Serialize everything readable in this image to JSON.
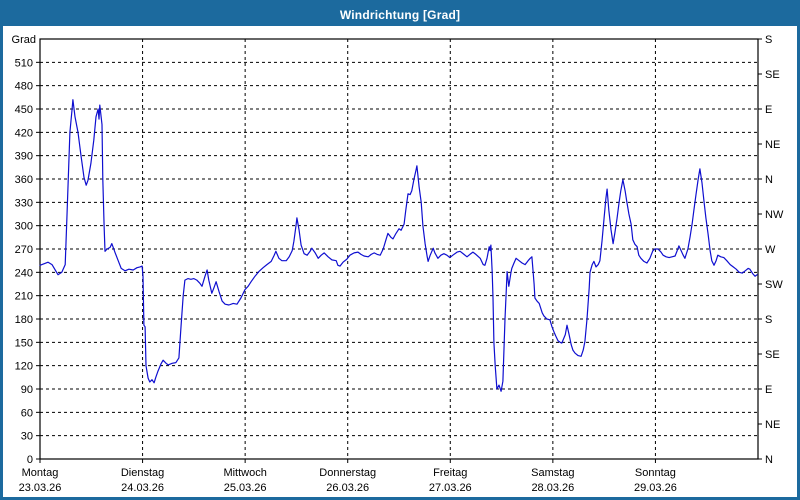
{
  "window": {
    "title": "Windrichtung [Grad]"
  },
  "colors": {
    "titlebar": "#1c6a9e",
    "window_border": "#1c6a9e",
    "series_line": "#0f0fd0",
    "grid": "#000000",
    "background": "#ffffff",
    "title_text": "#ffffff"
  },
  "chart_data": {
    "type": "line",
    "title": "Windrichtung [Grad]",
    "ylabel_left": "Grad",
    "ylim": [
      0,
      540
    ],
    "xlim_hours": [
      0,
      168
    ],
    "grid": "dashed",
    "legend": "none",
    "y_left_ticks": [
      0,
      30,
      60,
      90,
      120,
      150,
      180,
      210,
      240,
      270,
      300,
      330,
      360,
      390,
      420,
      450,
      480,
      510
    ],
    "y_right_ticks": [
      {
        "deg": 0,
        "label": "N"
      },
      {
        "deg": 45,
        "label": "NE"
      },
      {
        "deg": 90,
        "label": "E"
      },
      {
        "deg": 135,
        "label": "SE"
      },
      {
        "deg": 180,
        "label": "S"
      },
      {
        "deg": 225,
        "label": "SW"
      },
      {
        "deg": 270,
        "label": "W"
      },
      {
        "deg": 315,
        "label": "NW"
      },
      {
        "deg": 360,
        "label": "N"
      },
      {
        "deg": 405,
        "label": "NE"
      },
      {
        "deg": 450,
        "label": "E"
      },
      {
        "deg": 495,
        "label": "SE"
      },
      {
        "deg": 540,
        "label": "S"
      }
    ],
    "x_ticks": [
      {
        "hours": 0,
        "day": "Montag",
        "date": "23.03.26"
      },
      {
        "hours": 24,
        "day": "Dienstag",
        "date": "24.03.26"
      },
      {
        "hours": 48,
        "day": "Mittwoch",
        "date": "25.03.26"
      },
      {
        "hours": 72,
        "day": "Donnerstag",
        "date": "26.03.26"
      },
      {
        "hours": 96,
        "day": "Freitag",
        "date": "27.03.26"
      },
      {
        "hours": 120,
        "day": "Samstag",
        "date": "28.03.26"
      },
      {
        "hours": 144,
        "day": "Sonntag",
        "date": "29.03.26"
      }
    ],
    "series": [
      {
        "name": "Windrichtung",
        "color": "#0f0fd0",
        "points": [
          [
            0,
            249
          ],
          [
            1.9,
            253
          ],
          [
            2.8,
            250
          ],
          [
            4.2,
            237
          ],
          [
            5.1,
            240
          ],
          [
            5.9,
            250
          ],
          [
            6.3,
            310
          ],
          [
            7,
            420
          ],
          [
            7.5,
            450
          ],
          [
            7.7,
            462
          ],
          [
            8.2,
            440
          ],
          [
            8.9,
            420
          ],
          [
            9.6,
            390
          ],
          [
            10.3,
            362
          ],
          [
            10.8,
            352
          ],
          [
            11.2,
            358
          ],
          [
            11.9,
            380
          ],
          [
            12.6,
            410
          ],
          [
            13.1,
            440
          ],
          [
            13.6,
            450
          ],
          [
            13.8,
            437
          ],
          [
            14,
            455
          ],
          [
            14.5,
            430
          ],
          [
            14.7,
            360
          ],
          [
            15,
            300
          ],
          [
            15.2,
            267
          ],
          [
            15.7,
            270
          ],
          [
            16.4,
            272
          ],
          [
            16.8,
            277
          ],
          [
            17.6,
            265
          ],
          [
            18.3,
            255
          ],
          [
            19,
            245
          ],
          [
            19.9,
            242
          ],
          [
            20.8,
            244
          ],
          [
            21.8,
            243
          ],
          [
            22.7,
            246
          ],
          [
            23.4,
            247
          ],
          [
            23.9,
            248
          ],
          [
            24.1,
            235
          ],
          [
            24.3,
            172
          ],
          [
            24.6,
            170
          ],
          [
            24.8,
            120
          ],
          [
            25.3,
            104
          ],
          [
            25.7,
            99
          ],
          [
            26.2,
            102
          ],
          [
            26.7,
            98
          ],
          [
            27.1,
            105
          ],
          [
            27.6,
            113
          ],
          [
            28.3,
            122
          ],
          [
            28.8,
            127
          ],
          [
            29.5,
            123
          ],
          [
            30,
            121
          ],
          [
            30.9,
            123
          ],
          [
            31.8,
            124
          ],
          [
            32.5,
            130
          ],
          [
            33,
            170
          ],
          [
            33.5,
            210
          ],
          [
            33.9,
            230
          ],
          [
            34.6,
            232
          ],
          [
            35.3,
            231
          ],
          [
            36,
            232
          ],
          [
            36.7,
            230
          ],
          [
            37.4,
            226
          ],
          [
            37.9,
            222
          ],
          [
            38.6,
            235
          ],
          [
            39.1,
            243
          ],
          [
            39.5,
            230
          ],
          [
            40.2,
            213
          ],
          [
            40.7,
            220
          ],
          [
            41.2,
            228
          ],
          [
            41.9,
            215
          ],
          [
            42.6,
            203
          ],
          [
            43.3,
            199
          ],
          [
            44.2,
            198
          ],
          [
            45.2,
            200
          ],
          [
            46.1,
            199
          ],
          [
            47,
            207
          ],
          [
            48,
            218
          ],
          [
            48.7,
            222
          ],
          [
            49.4,
            228
          ],
          [
            50.3,
            235
          ],
          [
            51.2,
            241
          ],
          [
            52.2,
            246
          ],
          [
            53.1,
            250
          ],
          [
            54.1,
            254
          ],
          [
            54.8,
            262
          ],
          [
            55.2,
            267
          ],
          [
            55.9,
            258
          ],
          [
            56.6,
            255
          ],
          [
            57.6,
            255
          ],
          [
            58.3,
            260
          ],
          [
            59,
            268
          ],
          [
            59.4,
            280
          ],
          [
            59.9,
            300
          ],
          [
            60.1,
            310
          ],
          [
            60.6,
            295
          ],
          [
            61.1,
            275
          ],
          [
            61.8,
            264
          ],
          [
            62.5,
            262
          ],
          [
            63.2,
            267
          ],
          [
            63.6,
            271
          ],
          [
            64.4,
            265
          ],
          [
            65.1,
            258
          ],
          [
            65.8,
            262
          ],
          [
            66.5,
            265
          ],
          [
            67.4,
            260
          ],
          [
            68.3,
            256
          ],
          [
            69.3,
            255
          ],
          [
            69.7,
            249
          ],
          [
            70.2,
            248
          ],
          [
            70.9,
            253
          ],
          [
            71.8,
            257
          ],
          [
            72.5,
            262
          ],
          [
            73.5,
            265
          ],
          [
            74.4,
            266
          ],
          [
            75.1,
            263
          ],
          [
            75.8,
            261
          ],
          [
            76.8,
            260
          ],
          [
            77.5,
            263
          ],
          [
            78.2,
            265
          ],
          [
            78.9,
            263
          ],
          [
            79.6,
            262
          ],
          [
            80.3,
            270
          ],
          [
            81,
            283
          ],
          [
            81.4,
            290
          ],
          [
            82.1,
            285
          ],
          [
            82.6,
            283
          ],
          [
            83.3,
            290
          ],
          [
            84,
            296
          ],
          [
            84.5,
            294
          ],
          [
            85.2,
            302
          ],
          [
            85.6,
            320
          ],
          [
            86.1,
            341
          ],
          [
            86.6,
            340
          ],
          [
            87,
            345
          ],
          [
            87.5,
            360
          ],
          [
            88,
            372
          ],
          [
            88.2,
            377
          ],
          [
            88.7,
            350
          ],
          [
            89.2,
            330
          ],
          [
            89.6,
            300
          ],
          [
            90.1,
            277
          ],
          [
            90.6,
            260
          ],
          [
            90.8,
            254
          ],
          [
            91.3,
            262
          ],
          [
            92,
            271
          ],
          [
            92.4,
            265
          ],
          [
            93.1,
            258
          ],
          [
            93.8,
            262
          ],
          [
            94.5,
            264
          ],
          [
            95.2,
            262
          ],
          [
            95.9,
            259
          ],
          [
            96.6,
            262
          ],
          [
            97.6,
            266
          ],
          [
            98.3,
            267
          ],
          [
            99.2,
            263
          ],
          [
            99.9,
            260
          ],
          [
            100.6,
            263
          ],
          [
            101.3,
            266
          ],
          [
            102,
            263
          ],
          [
            103,
            258
          ],
          [
            103.7,
            250
          ],
          [
            104.1,
            249
          ],
          [
            104.6,
            258
          ],
          [
            105.1,
            273
          ],
          [
            105.3,
            268
          ],
          [
            105.5,
            275
          ],
          [
            105.8,
            240
          ],
          [
            106,
            207
          ],
          [
            106.2,
            150
          ],
          [
            106.5,
            120
          ],
          [
            106.9,
            90
          ],
          [
            107.4,
            95
          ],
          [
            107.9,
            87
          ],
          [
            108.3,
            100
          ],
          [
            108.8,
            180
          ],
          [
            109.3,
            241
          ],
          [
            109.7,
            222
          ],
          [
            110.2,
            240
          ],
          [
            110.4,
            245
          ],
          [
            110.9,
            252
          ],
          [
            111.4,
            258
          ],
          [
            112.1,
            255
          ],
          [
            112.8,
            252
          ],
          [
            113.5,
            250
          ],
          [
            114.2,
            255
          ],
          [
            114.7,
            258
          ],
          [
            115.1,
            260
          ],
          [
            115.6,
            225
          ],
          [
            115.8,
            207
          ],
          [
            116.3,
            203
          ],
          [
            116.8,
            200
          ],
          [
            117.5,
            188
          ],
          [
            117.9,
            184
          ],
          [
            118.6,
            180
          ],
          [
            119.3,
            179
          ],
          [
            119.8,
            170
          ],
          [
            120.3,
            163
          ],
          [
            120.7,
            158
          ],
          [
            121.2,
            152
          ],
          [
            121.7,
            150
          ],
          [
            122.1,
            149
          ],
          [
            122.9,
            160
          ],
          [
            123.3,
            172
          ],
          [
            123.8,
            160
          ],
          [
            124.3,
            147
          ],
          [
            124.7,
            140
          ],
          [
            125.2,
            136
          ],
          [
            125.9,
            133
          ],
          [
            126.6,
            132
          ],
          [
            127.1,
            140
          ],
          [
            127.5,
            151
          ],
          [
            128,
            180
          ],
          [
            128.5,
            220
          ],
          [
            128.7,
            240
          ],
          [
            129.2,
            250
          ],
          [
            129.6,
            254
          ],
          [
            130.1,
            247
          ],
          [
            130.6,
            250
          ],
          [
            131,
            255
          ],
          [
            131.5,
            280
          ],
          [
            132,
            310
          ],
          [
            132.4,
            335
          ],
          [
            132.7,
            347
          ],
          [
            133.1,
            320
          ],
          [
            133.6,
            295
          ],
          [
            134.1,
            277
          ],
          [
            134.5,
            290
          ],
          [
            135,
            309
          ],
          [
            135.5,
            330
          ],
          [
            135.9,
            345
          ],
          [
            136.4,
            359
          ],
          [
            136.9,
            345
          ],
          [
            137.3,
            331
          ],
          [
            137.8,
            315
          ],
          [
            138.3,
            302
          ],
          [
            138.7,
            282
          ],
          [
            139.2,
            276
          ],
          [
            139.7,
            273
          ],
          [
            140.1,
            262
          ],
          [
            140.6,
            258
          ],
          [
            141.3,
            254
          ],
          [
            142,
            252
          ],
          [
            142.7,
            258
          ],
          [
            143.4,
            268
          ],
          [
            143.9,
            270
          ],
          [
            144.6,
            270
          ],
          [
            145.3,
            266
          ],
          [
            145.8,
            262
          ],
          [
            146.5,
            260
          ],
          [
            147.2,
            259
          ],
          [
            147.9,
            260
          ],
          [
            148.6,
            261
          ],
          [
            149.1,
            268
          ],
          [
            149.5,
            274
          ],
          [
            150,
            268
          ],
          [
            150.5,
            262
          ],
          [
            150.9,
            258
          ],
          [
            151.6,
            270
          ],
          [
            152.1,
            285
          ],
          [
            152.6,
            303
          ],
          [
            153,
            320
          ],
          [
            153.5,
            340
          ],
          [
            154,
            360
          ],
          [
            154.4,
            373
          ],
          [
            154.9,
            355
          ],
          [
            155.4,
            330
          ],
          [
            155.8,
            310
          ],
          [
            156.3,
            290
          ],
          [
            156.8,
            268
          ],
          [
            157.2,
            255
          ],
          [
            157.7,
            249
          ],
          [
            158.2,
            255
          ],
          [
            158.6,
            262
          ],
          [
            159.3,
            260
          ],
          [
            160,
            259
          ],
          [
            160.7,
            255
          ],
          [
            161.5,
            250
          ],
          [
            162.2,
            247
          ],
          [
            162.9,
            244
          ],
          [
            163.6,
            240
          ],
          [
            164.3,
            239
          ],
          [
            165,
            242
          ],
          [
            165.7,
            245
          ],
          [
            166.1,
            244
          ],
          [
            166.8,
            238
          ],
          [
            167.3,
            235
          ],
          [
            167.8,
            237
          ]
        ]
      }
    ]
  }
}
